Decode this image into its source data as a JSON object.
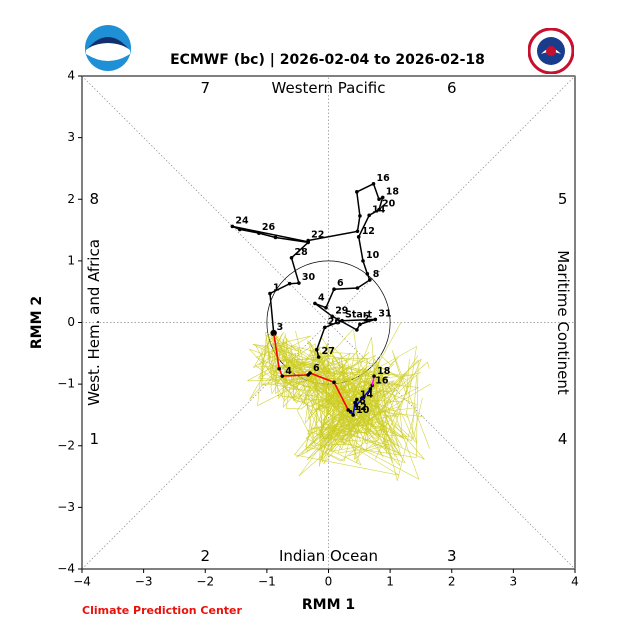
{
  "title": "ECMWF (bc) | 2026-02-04 to 2026-02-18",
  "footer": "Climate Prediction Center",
  "logos": {
    "left": "NOAA",
    "right": "NATIONAL WEATHER SERVICE"
  },
  "colors": {
    "observed": "#000000",
    "forecast_week1": "#ff0000",
    "forecast_week2": "#0000ff",
    "forecast_tail": "#ff00ff",
    "ensemble": "#cccc22",
    "footer": "#e8120c"
  },
  "chart_data": {
    "type": "line",
    "xlabel": "RMM 1",
    "ylabel": "RMM 2",
    "xlim": [
      -4,
      4
    ],
    "ylim": [
      -4,
      4
    ],
    "xticks": [
      "−4",
      "−3",
      "−2",
      "−1",
      "0",
      "1",
      "2",
      "3",
      "4"
    ],
    "yticks": [
      "−4",
      "−3",
      "−2",
      "−1",
      "0",
      "1",
      "2",
      "3",
      "4"
    ],
    "phase_numbers": [
      {
        "label": "1",
        "x": -3.8,
        "y": -1.9
      },
      {
        "label": "2",
        "x": -2.0,
        "y": -3.8
      },
      {
        "label": "3",
        "x": 2.0,
        "y": -3.8
      },
      {
        "label": "4",
        "x": 3.8,
        "y": -1.9
      },
      {
        "label": "5",
        "x": 3.8,
        "y": 2.0
      },
      {
        "label": "6",
        "x": 2.0,
        "y": 3.8
      },
      {
        "label": "7",
        "x": -2.0,
        "y": 3.8
      },
      {
        "label": "8",
        "x": -3.8,
        "y": 2.0
      }
    ],
    "region_labels": {
      "top": "Western Pacific",
      "bottom": "Indian Ocean",
      "left": "West. Hem. and Africa",
      "right": "Maritime Continent"
    },
    "observed": [
      {
        "x": -0.89,
        "y": -0.17,
        "label": "3"
      },
      {
        "x": -0.95,
        "y": 0.47,
        "label": "1"
      },
      {
        "x": -0.63,
        "y": 0.63
      },
      {
        "x": -0.48,
        "y": 0.64,
        "label": "30"
      },
      {
        "x": -0.6,
        "y": 1.05,
        "label": "28"
      },
      {
        "x": -0.33,
        "y": 1.3
      },
      {
        "x": -0.86,
        "y": 1.38
      },
      {
        "x": -1.13,
        "y": 1.45,
        "label": "26"
      },
      {
        "x": -1.44,
        "y": 1.51
      },
      {
        "x": -1.56,
        "y": 1.56,
        "label": "24"
      },
      {
        "x": -0.33,
        "y": 1.31
      },
      {
        "x": -0.33,
        "y": 1.33,
        "label": "22"
      },
      {
        "x": 0.47,
        "y": 1.48
      },
      {
        "x": 0.51,
        "y": 1.73
      },
      {
        "x": 0.46,
        "y": 2.12
      },
      {
        "x": 0.73,
        "y": 2.25,
        "label": "16"
      },
      {
        "x": 0.82,
        "y": 2.0
      },
      {
        "x": 0.88,
        "y": 2.03,
        "label": "18"
      },
      {
        "x": 0.82,
        "y": 1.83,
        "label": "20"
      },
      {
        "x": 0.66,
        "y": 1.74,
        "label": "14"
      },
      {
        "x": 0.49,
        "y": 1.39,
        "label": "12"
      },
      {
        "x": 0.56,
        "y": 1.0,
        "label": "10"
      },
      {
        "x": 0.63,
        "y": 0.79
      },
      {
        "x": 0.67,
        "y": 0.69,
        "label": "8"
      },
      {
        "x": 0.47,
        "y": 0.56
      },
      {
        "x": 0.09,
        "y": 0.54,
        "label": "6"
      },
      {
        "x": -0.04,
        "y": 0.24
      },
      {
        "x": -0.22,
        "y": 0.31,
        "label": "4"
      },
      {
        "x": 0.06,
        "y": 0.1,
        "label": "29"
      },
      {
        "x": 0.46,
        "y": -0.12
      },
      {
        "x": 0.51,
        "y": -0.03,
        "label": "2"
      },
      {
        "x": 0.76,
        "y": 0.05,
        "label": "31"
      },
      {
        "x": 0.22,
        "y": 0.03,
        "label": "Start"
      },
      {
        "x": -0.06,
        "y": -0.08,
        "label": "26"
      },
      {
        "x": -0.19,
        "y": -0.44
      },
      {
        "x": -0.16,
        "y": -0.56,
        "label": "27"
      }
    ],
    "series": [
      {
        "points": [
          {
            "x": -0.89,
            "y": -0.17
          },
          {
            "x": -0.8,
            "y": -0.75
          },
          {
            "x": -0.75,
            "y": -0.87,
            "label": "4"
          },
          {
            "x": -0.33,
            "y": -0.85
          },
          {
            "x": -0.3,
            "y": -0.82,
            "label": "6"
          },
          {
            "x": 0.09,
            "y": -0.97
          },
          {
            "x": 0.32,
            "y": -1.42
          },
          {
            "x": 0.36,
            "y": -1.45,
            "label": "12"
          }
        ]
      },
      {
        "points": [
          {
            "x": 0.36,
            "y": -1.45
          },
          {
            "x": 0.4,
            "y": -1.5,
            "label": "10"
          },
          {
            "x": 0.43,
            "y": -1.3
          },
          {
            "x": 0.46,
            "y": -1.25,
            "label": "14"
          },
          {
            "x": 0.45,
            "y": -1.35,
            "label": "8"
          },
          {
            "x": 0.68,
            "y": -1.08
          },
          {
            "x": 0.71,
            "y": -1.02,
            "label": "16"
          }
        ]
      },
      {
        "points": [
          {
            "x": 0.71,
            "y": -1.02
          },
          {
            "x": 0.74,
            "y": -0.87,
            "label": "18"
          }
        ]
      }
    ]
  }
}
